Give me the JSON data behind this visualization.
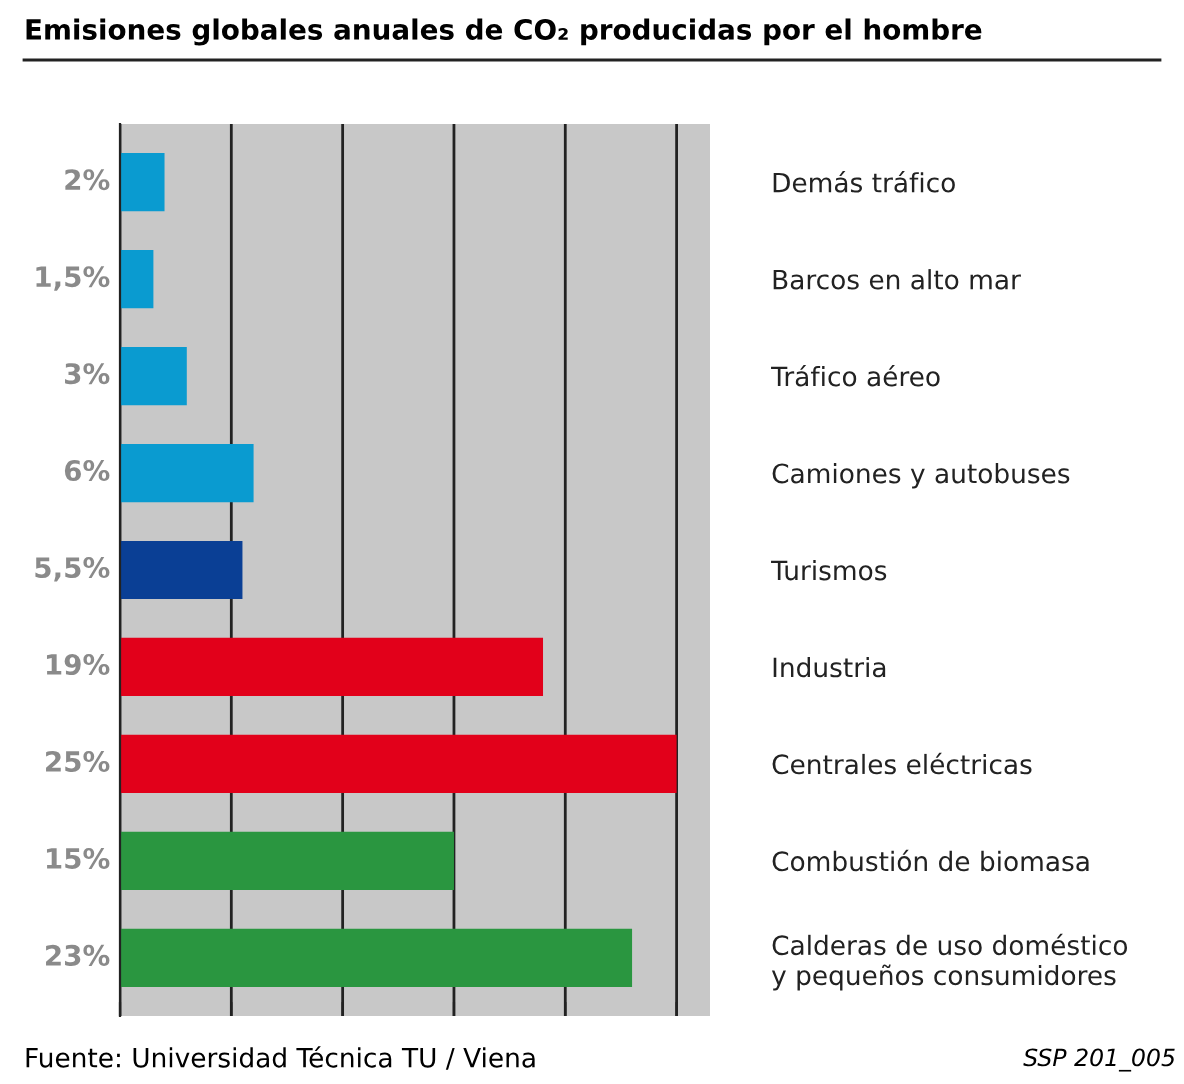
{
  "chart_data": {
    "type": "bar",
    "orientation": "horizontal",
    "title": "Emisiones globales anuales de CO₂ producidas por el hombre",
    "categories": [
      "Demás tráfico",
      "Barcos en alto mar",
      "Tráfico aéreo",
      "Camiones y autobuses",
      "Turismos",
      "Industria",
      "Centrales eléctricas",
      "Combustión de biomasa",
      "Calderas de uso doméstico\ny pequeños consumidores"
    ],
    "values": [
      2,
      1.5,
      3,
      6,
      5.5,
      19,
      25,
      15,
      23
    ],
    "value_labels": [
      "2%",
      "1,5%",
      "3%",
      "6%",
      "5,5%",
      "19%",
      "25%",
      "15%",
      "23%"
    ],
    "colors": [
      "#0a9bd0",
      "#0a9bd0",
      "#0a9bd0",
      "#0a9bd0",
      "#0a3f95",
      "#e2001a",
      "#e2001a",
      "#2a9640",
      "#2a9640"
    ],
    "xlim": [
      0,
      26.5
    ],
    "xticks": [
      {
        "value": 0,
        "label": null
      },
      {
        "value": 5,
        "label": null
      },
      {
        "value": 10,
        "label": null
      },
      {
        "value": 15,
        "label": null
      },
      {
        "value": 20,
        "label": null
      },
      {
        "value": 25,
        "label": null
      }
    ],
    "grid": "x",
    "annotations": [
      "Fuente: Universidad Técnica TU / Viena",
      "SSP 201_005"
    ]
  }
}
